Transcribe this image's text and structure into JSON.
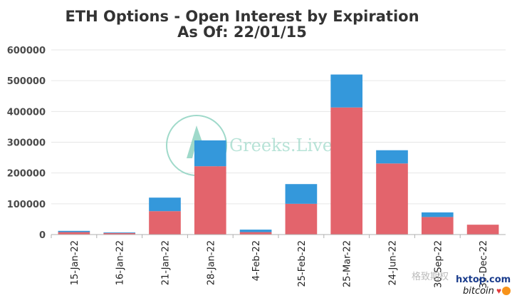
{
  "chart_data": {
    "type": "bar",
    "stacked": true,
    "title": "ETH Options - Open Interest by Expiration",
    "subtitle": "As Of: 22/01/15",
    "categories": [
      "15-Jan-22",
      "16-Jan-22",
      "21-Jan-22",
      "28-Jan-22",
      "4-Feb-22",
      "25-Feb-22",
      "25-Mar-22",
      "24-Jun-22",
      "30-Sep-22",
      "30-Dec-22"
    ],
    "series": [
      {
        "values": [
          8000,
          5000,
          76000,
          222000,
          8000,
          100000,
          413000,
          231000,
          57000,
          32000
        ],
        "color": "#e3646c"
      },
      {
        "values": [
          4000,
          2000,
          44000,
          84000,
          8000,
          64000,
          107000,
          43000,
          15000,
          0
        ],
        "color": "#3498db"
      }
    ],
    "ylim": [
      0,
      600000
    ],
    "yticks": [
      "0",
      "100000",
      "200000",
      "300000",
      "400000",
      "500000",
      "600000"
    ],
    "grid": true,
    "legend": "none"
  },
  "watermark": {
    "text": "Greeks.Live",
    "color": "#8fd3c1"
  },
  "corner": {
    "site": "hxtop.com",
    "brand": "bitcoin",
    "account": "格致期权"
  }
}
